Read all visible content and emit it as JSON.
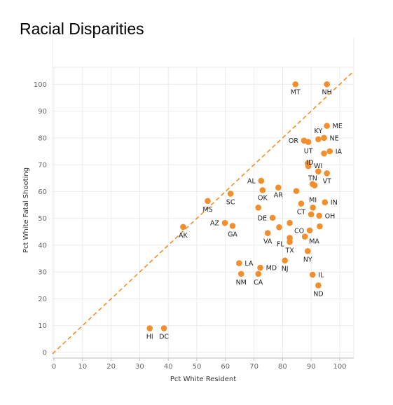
{
  "page": {
    "title": "Racial Disparities"
  },
  "chart_data": {
    "type": "scatter",
    "title": "Racial Disparities",
    "xlabel": "Pct White Resident",
    "ylabel": "Pct White Fatal Shooting",
    "xlim": [
      0,
      105
    ],
    "ylim": [
      0,
      105
    ],
    "xticks": [
      0,
      10,
      20,
      30,
      40,
      50,
      60,
      70,
      80,
      90,
      100
    ],
    "yticks": [
      0,
      10,
      20,
      30,
      40,
      50,
      60,
      70,
      80,
      90,
      100
    ],
    "grid": true,
    "reference_line": {
      "type": "diagonal",
      "style": "dashed",
      "note": "y = x"
    },
    "colors": {
      "points": "#f28e2b",
      "reference_line": "#f28e2b",
      "grid": "#ebebeb"
    },
    "points": [
      {
        "label": "MT",
        "x": 84.5,
        "y": 100
      },
      {
        "label": "NH",
        "x": 95.5,
        "y": 100
      },
      {
        "label": "ME",
        "x": 95.5,
        "y": 84.5
      },
      {
        "label": "KY",
        "x": 92.5,
        "y": 79.5
      },
      {
        "label": "NE",
        "x": 94.5,
        "y": 80
      },
      {
        "label": "OR",
        "x": 87.5,
        "y": 79
      },
      {
        "label": "UT",
        "x": 89,
        "y": 78.5
      },
      {
        "label": "IA",
        "x": 96.5,
        "y": 75
      },
      {
        "label": "",
        "x": 94.5,
        "y": 74.2
      },
      {
        "label": "ID",
        "x": 88.8,
        "y": 70.5
      },
      {
        "label": "WI",
        "x": 89,
        "y": 69.5
      },
      {
        "label": "TN",
        "x": 92.5,
        "y": 67.5
      },
      {
        "label": "VT",
        "x": 95.5,
        "y": 66.8
      },
      {
        "label": "AL",
        "x": 72.5,
        "y": 64
      },
      {
        "label": "",
        "x": 90.5,
        "y": 62.8
      },
      {
        "label": "",
        "x": 91.2,
        "y": 62.3
      },
      {
        "label": "AR",
        "x": 78.5,
        "y": 61.5
      },
      {
        "label": "OK",
        "x": 73,
        "y": 60.5
      },
      {
        "label": "",
        "x": 84.8,
        "y": 60.2
      },
      {
        "label": "SC",
        "x": 61.8,
        "y": 59.2
      },
      {
        "label": "MS",
        "x": 53.8,
        "y": 56.5
      },
      {
        "label": "IN",
        "x": 94.8,
        "y": 56
      },
      {
        "label": "CT",
        "x": 86.5,
        "y": 55.5
      },
      {
        "label": "MI",
        "x": 90.6,
        "y": 54
      },
      {
        "label": "",
        "x": 71.5,
        "y": 54
      },
      {
        "label": "DE",
        "x": 76.5,
        "y": 50.2
      },
      {
        "label": "",
        "x": 90,
        "y": 51.5
      },
      {
        "label": "OH",
        "x": 92.8,
        "y": 51
      },
      {
        "label": "AZ",
        "x": 59.8,
        "y": 48.3
      },
      {
        "label": "",
        "x": 82.5,
        "y": 48.3
      },
      {
        "label": "GA",
        "x": 62.5,
        "y": 47.2
      },
      {
        "label": "AK",
        "x": 45.2,
        "y": 46.8
      },
      {
        "label": "",
        "x": 78.8,
        "y": 46.7
      },
      {
        "label": "",
        "x": 93,
        "y": 47
      },
      {
        "label": "CO",
        "x": 89.5,
        "y": 45.5
      },
      {
        "label": "VA",
        "x": 74.8,
        "y": 44.5
      },
      {
        "label": "FL",
        "x": 82.5,
        "y": 42.7
      },
      {
        "label": "MA",
        "x": 87.8,
        "y": 43.2
      },
      {
        "label": "TX",
        "x": 82.5,
        "y": 41.2
      },
      {
        "label": "NY",
        "x": 88.8,
        "y": 37.8
      },
      {
        "label": "LA",
        "x": 64.8,
        "y": 33.3
      },
      {
        "label": "NJ",
        "x": 80.8,
        "y": 34.3
      },
      {
        "label": "MD",
        "x": 72.2,
        "y": 31.6
      },
      {
        "label": "NM",
        "x": 65.5,
        "y": 29.3
      },
      {
        "label": "CA",
        "x": 71.5,
        "y": 29.3
      },
      {
        "label": "IL",
        "x": 90.5,
        "y": 29
      },
      {
        "label": "ND",
        "x": 92.5,
        "y": 25
      },
      {
        "label": "HI",
        "x": 33.5,
        "y": 9
      },
      {
        "label": "DC",
        "x": 38.5,
        "y": 9
      }
    ]
  }
}
